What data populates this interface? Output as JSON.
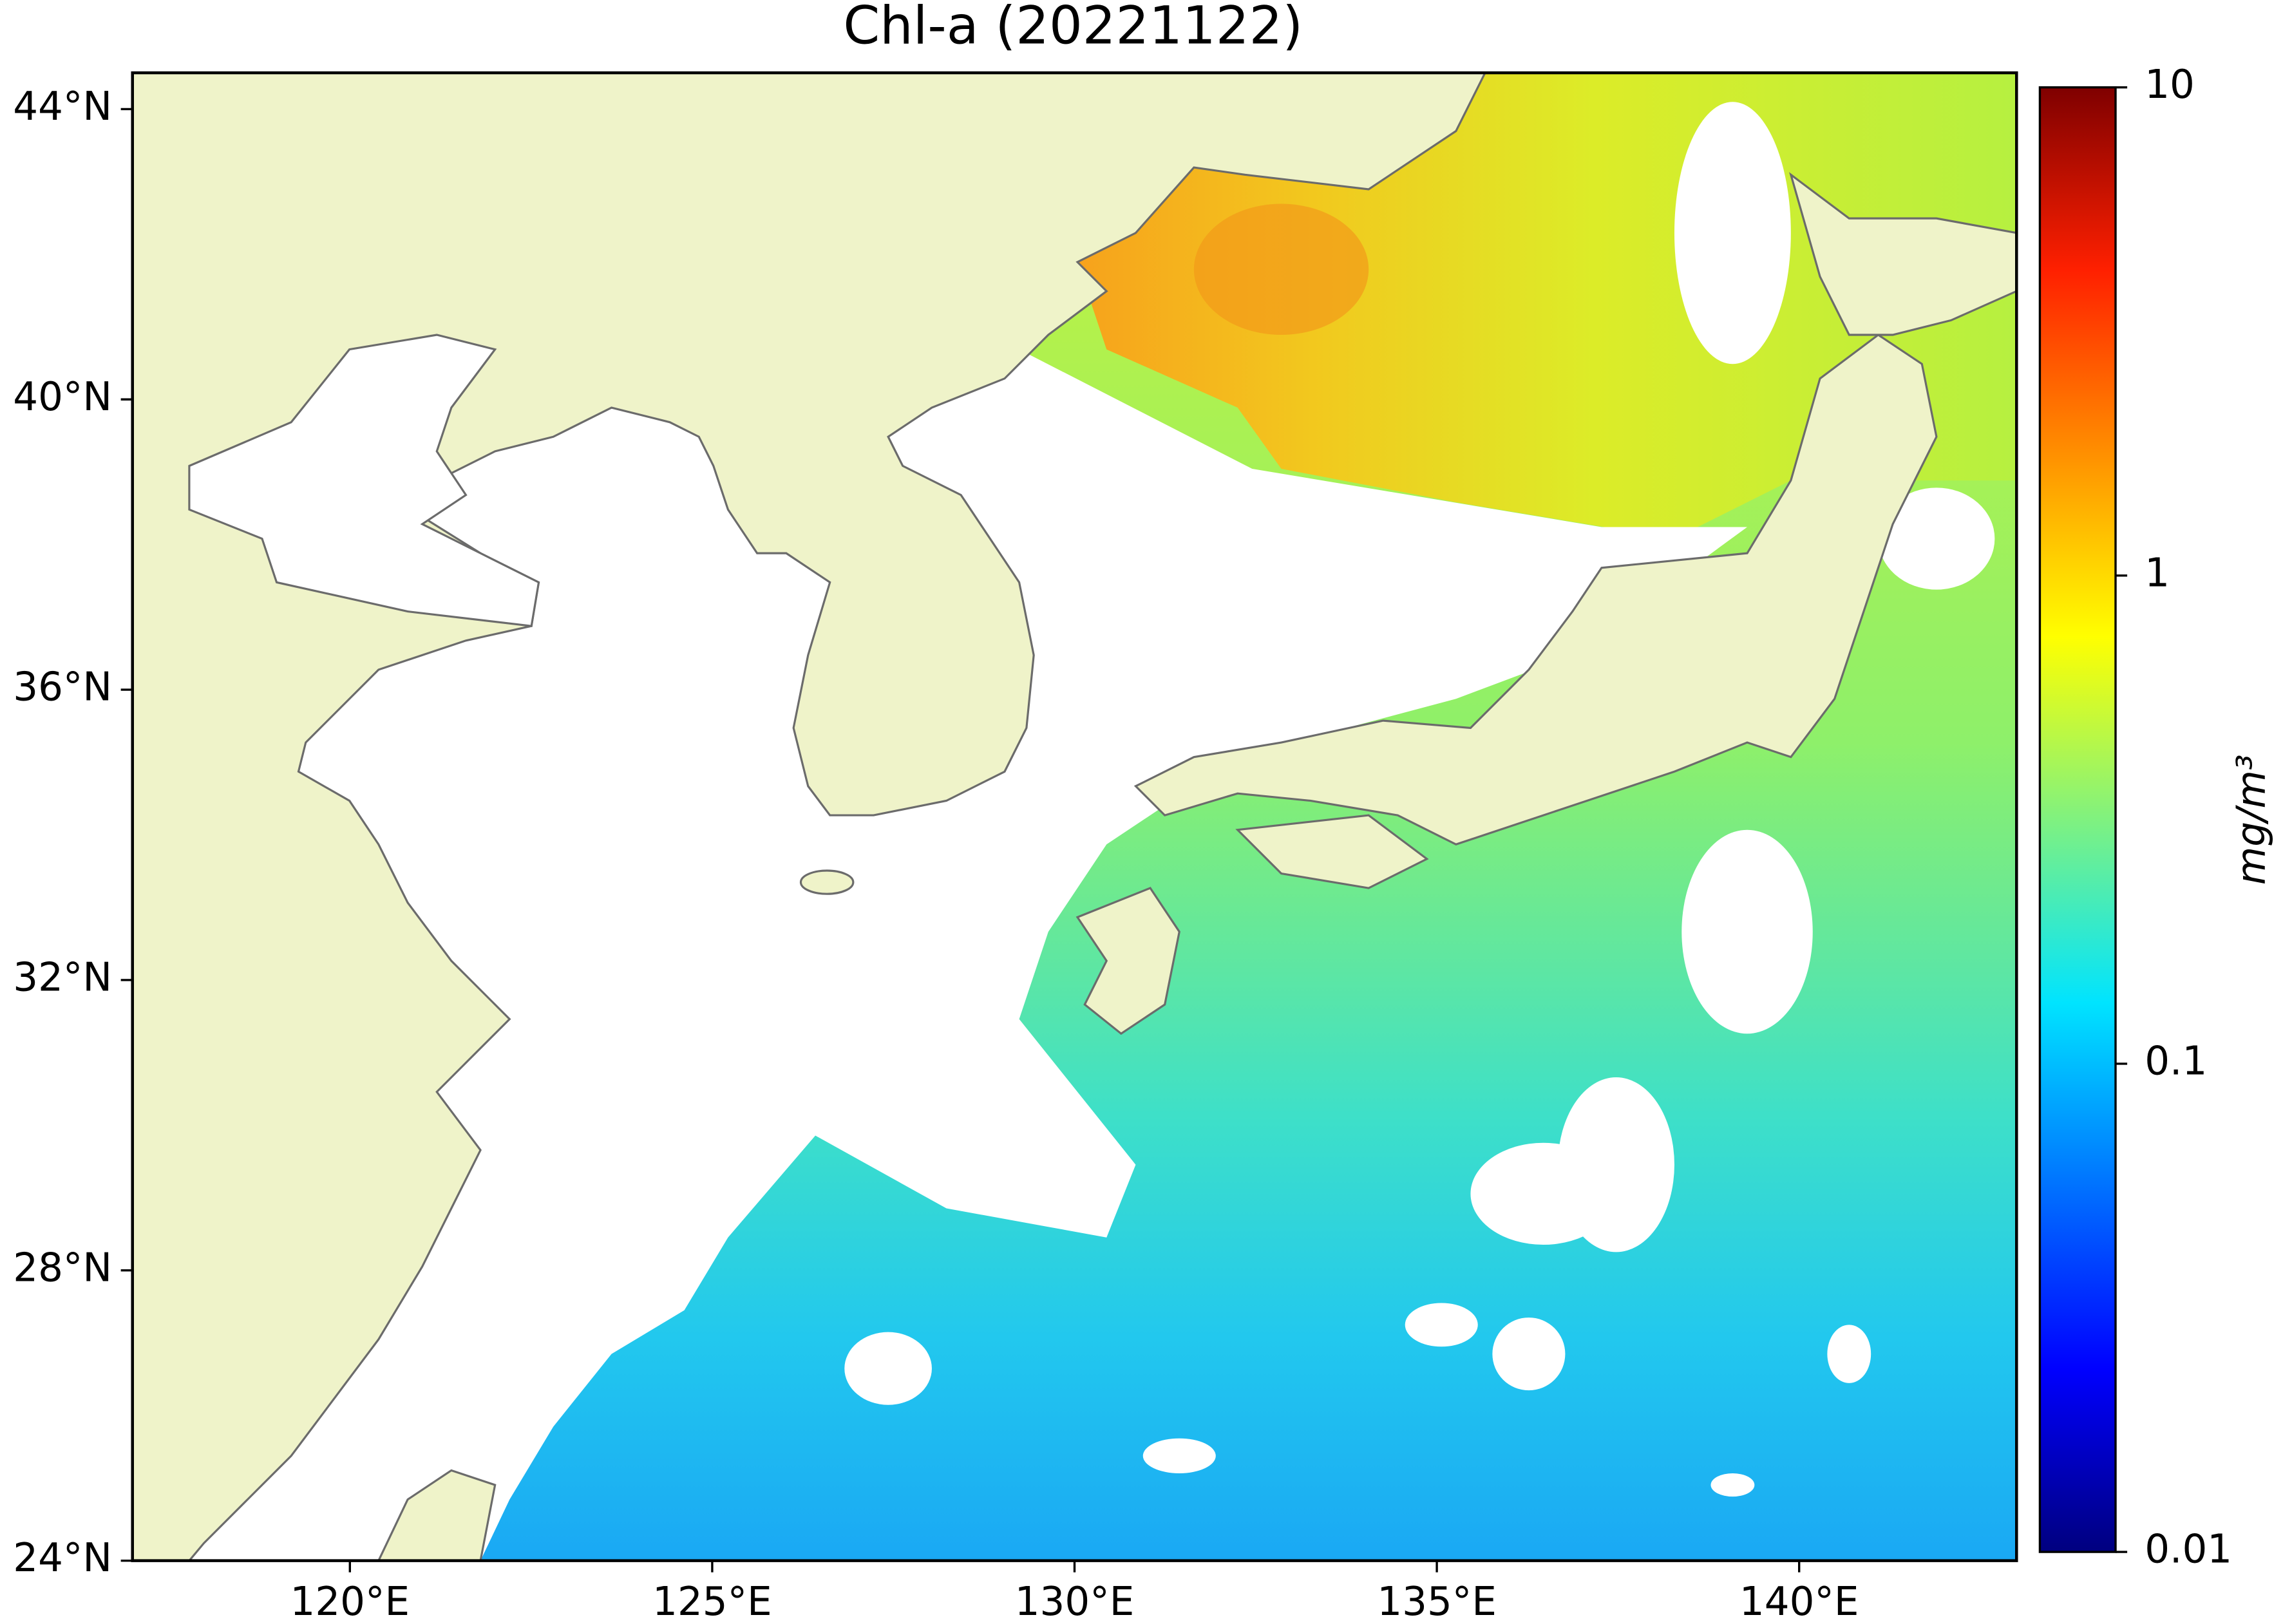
{
  "chart_data": {
    "type": "map",
    "title": "Chl-a (20221122)",
    "xlim": [
      117,
      143
    ],
    "ylim": [
      24,
      44.5
    ],
    "xticks": [
      {
        "value": 120,
        "label": "120°E"
      },
      {
        "value": 125,
        "label": "125°E"
      },
      {
        "value": 130,
        "label": "130°E"
      },
      {
        "value": 135,
        "label": "135°E"
      },
      {
        "value": 140,
        "label": "140°E"
      }
    ],
    "yticks": [
      {
        "value": 24,
        "label": "24°N"
      },
      {
        "value": 28,
        "label": "28°N"
      },
      {
        "value": 32,
        "label": "32°N"
      },
      {
        "value": 36,
        "label": "36°N"
      },
      {
        "value": 40,
        "label": "40°N"
      },
      {
        "value": 44,
        "label": "44°N"
      }
    ],
    "colorbar": {
      "label": "mg/m³",
      "colormap": "jet",
      "scale": "log",
      "clim": [
        0.01,
        10
      ],
      "ticks": [
        0.01,
        0.1,
        1,
        10
      ]
    }
  }
}
